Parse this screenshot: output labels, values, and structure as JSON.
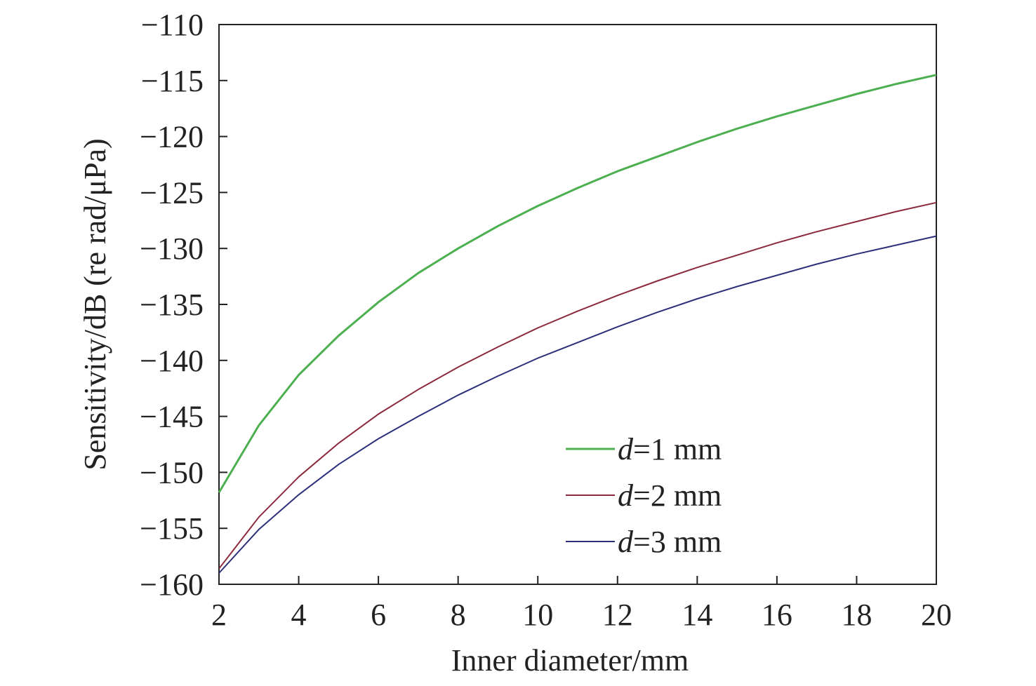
{
  "chart_data": {
    "type": "line",
    "xlabel": "Inner diameter/mm",
    "ylabel": "Sensitivity/dB (re rad/μPa)",
    "xlim": [
      2,
      20
    ],
    "ylim": [
      -160,
      -110
    ],
    "xticks": [
      2,
      4,
      6,
      8,
      10,
      12,
      14,
      16,
      18,
      20
    ],
    "yticks": [
      -110,
      -115,
      -120,
      -125,
      -130,
      -135,
      -140,
      -145,
      -150,
      -155,
      -160
    ],
    "grid": false,
    "legend_position": "bottom-right",
    "series": [
      {
        "var": "d",
        "label": "=1 mm",
        "color": "#4caf50",
        "x": [
          2,
          3,
          4,
          5,
          6,
          7,
          8,
          9,
          10,
          11,
          12,
          13,
          14,
          15,
          16,
          17,
          18,
          19,
          20
        ],
        "y": [
          -151.8,
          -145.8,
          -141.3,
          -137.8,
          -134.8,
          -132.2,
          -130.0,
          -128.0,
          -126.2,
          -124.6,
          -123.1,
          -121.8,
          -120.5,
          -119.3,
          -118.2,
          -117.2,
          -116.2,
          -115.3,
          -114.5
        ]
      },
      {
        "var": "d",
        "label": "=2 mm",
        "color": "#8b2a3c",
        "x": [
          2,
          3,
          4,
          5,
          6,
          7,
          8,
          9,
          10,
          11,
          12,
          13,
          14,
          15,
          16,
          17,
          18,
          19,
          20
        ],
        "y": [
          -158.6,
          -154.0,
          -150.4,
          -147.4,
          -144.8,
          -142.6,
          -140.6,
          -138.8,
          -137.1,
          -135.6,
          -134.2,
          -132.9,
          -131.7,
          -130.6,
          -129.5,
          -128.5,
          -127.6,
          -126.7,
          -125.9
        ]
      },
      {
        "var": "d",
        "label": "=3 mm",
        "color": "#2c2f7a",
        "x": [
          2,
          3,
          4,
          5,
          6,
          7,
          8,
          9,
          10,
          11,
          12,
          13,
          14,
          15,
          16,
          17,
          18,
          19,
          20
        ],
        "y": [
          -159.0,
          -155.1,
          -152.0,
          -149.3,
          -147.0,
          -145.0,
          -143.1,
          -141.4,
          -139.8,
          -138.4,
          -137.0,
          -135.7,
          -134.5,
          -133.4,
          -132.4,
          -131.4,
          -130.5,
          -129.7,
          -128.9
        ]
      }
    ]
  }
}
